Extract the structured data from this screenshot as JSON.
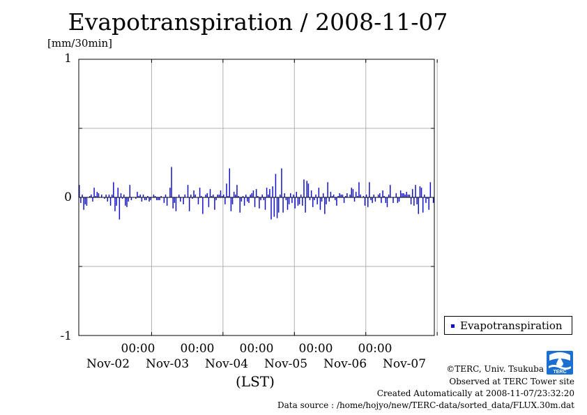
{
  "chart_data": {
    "type": "bar",
    "title": "Evapotranspiration / 2008-11-07",
    "ylabel": "[mm/30min]",
    "xlabel": "(LST)",
    "ylim": [
      -1,
      1
    ],
    "yticks": [
      "1",
      "0",
      "-1"
    ],
    "x_time_labels": [
      "00:00",
      "00:00",
      "00:00",
      "00:00",
      "00:00"
    ],
    "x_day_labels": [
      "Nov-02",
      "Nov-03",
      "Nov-04",
      "Nov-05",
      "Nov-06",
      "Nov-07"
    ],
    "grid": true,
    "legend_position": "right",
    "series": [
      {
        "name": "Evapotranspiration",
        "color": "#1010c8",
        "values": [
          0.09,
          -0.04,
          0.02,
          -0.09,
          -0.05,
          -0.06,
          0.0,
          0.01,
          0.02,
          -0.03,
          0.07,
          0.01,
          0.04,
          0.03,
          0.0,
          0.02,
          0.0,
          -0.01,
          0.02,
          -0.03,
          0.02,
          -0.06,
          0.02,
          0.11,
          -0.1,
          -0.06,
          0.07,
          -0.16,
          0.03,
          -0.01,
          0.02,
          -0.06,
          -0.07,
          -0.03,
          0.09,
          -0.02,
          0.0,
          0.0,
          -0.01,
          0.04,
          0.01,
          0.02,
          -0.03,
          0.02,
          -0.02,
          -0.02,
          0.01,
          -0.03,
          -0.02,
          0.0,
          0.02,
          0.01,
          -0.02,
          -0.02,
          -0.02,
          0.01,
          0.0,
          -0.04,
          0.02,
          -0.06,
          0.0,
          0.07,
          0.22,
          -0.08,
          -0.04,
          -0.1,
          0.0,
          0.02,
          -0.03,
          0.0,
          -0.05,
          0.02,
          0.0,
          0.09,
          -0.1,
          0.02,
          -0.01,
          0.05,
          0.02,
          0.0,
          -0.05,
          0.07,
          0.01,
          -0.12,
          0.0,
          0.02,
          0.03,
          -0.07,
          0.06,
          0.01,
          0.02,
          -0.09,
          -0.02,
          0.02,
          0.02,
          0.05,
          0.01,
          0.02,
          -0.05,
          0.1,
          0.01,
          0.21,
          -0.1,
          -0.05,
          0.04,
          0.02,
          0.09,
          0.01,
          -0.11,
          -0.03,
          0.01,
          -0.06,
          0.02,
          -0.03,
          -0.04,
          0.02,
          0.03,
          0.05,
          -0.07,
          0.06,
          0.01,
          -0.08,
          -0.02,
          0.02,
          -0.02,
          -0.09,
          0.07,
          0.02,
          0.06,
          -0.16,
          0.08,
          -0.14,
          0.17,
          -0.15,
          -0.11,
          0.02,
          0.21,
          -0.11,
          0.03,
          -0.02,
          -0.09,
          -0.05,
          0.03,
          -0.04,
          0.02,
          -0.08,
          0.04,
          -0.06,
          -0.05,
          0.02,
          -0.06,
          0.13,
          -0.11,
          0.12,
          0.1,
          -0.02,
          0.05,
          -0.07,
          -0.02,
          0.02,
          -0.05,
          0.07,
          -0.09,
          -0.03,
          0.03,
          -0.12,
          -0.05,
          0.11,
          -0.03,
          0.04,
          0.01,
          0.02,
          -0.02,
          -0.06,
          0.01,
          0.03,
          0.02,
          0.02,
          -0.04,
          0.01,
          0.03,
          0.0,
          0.02,
          0.07,
          0.06,
          -0.03,
          0.04,
          0.01,
          0.11,
          0.02,
          0.0,
          0.01,
          -0.06,
          0.02,
          -0.07,
          0.11,
          -0.02,
          -0.04,
          0.02,
          -0.03,
          0.0,
          0.02,
          0.03,
          -0.04,
          0.05,
          0.01,
          -0.04,
          -0.07,
          0.02,
          0.09,
          0.0,
          -0.04,
          0.0,
          0.03,
          -0.04,
          -0.03,
          0.05,
          0.03,
          0.03,
          0.02,
          0.04,
          0.02,
          0.02,
          -0.05,
          0.06,
          -0.06,
          0.09,
          -0.05,
          -0.12,
          0.08,
          0.07,
          -0.11,
          0.02,
          -0.04,
          -0.01,
          -0.09,
          0.11,
          0.0,
          -0.04
        ]
      }
    ]
  },
  "credits": {
    "copyright": "©TERC, Univ. Tsukuba",
    "observed": "Observed at TERC Tower site",
    "created": "Created Automatically at 2008-11-07/23:32:20",
    "source": "Data source : /home/hojyo/new/TERC-data/sorted_data/FLUX.30m.dat"
  },
  "logo_text": "TERC"
}
